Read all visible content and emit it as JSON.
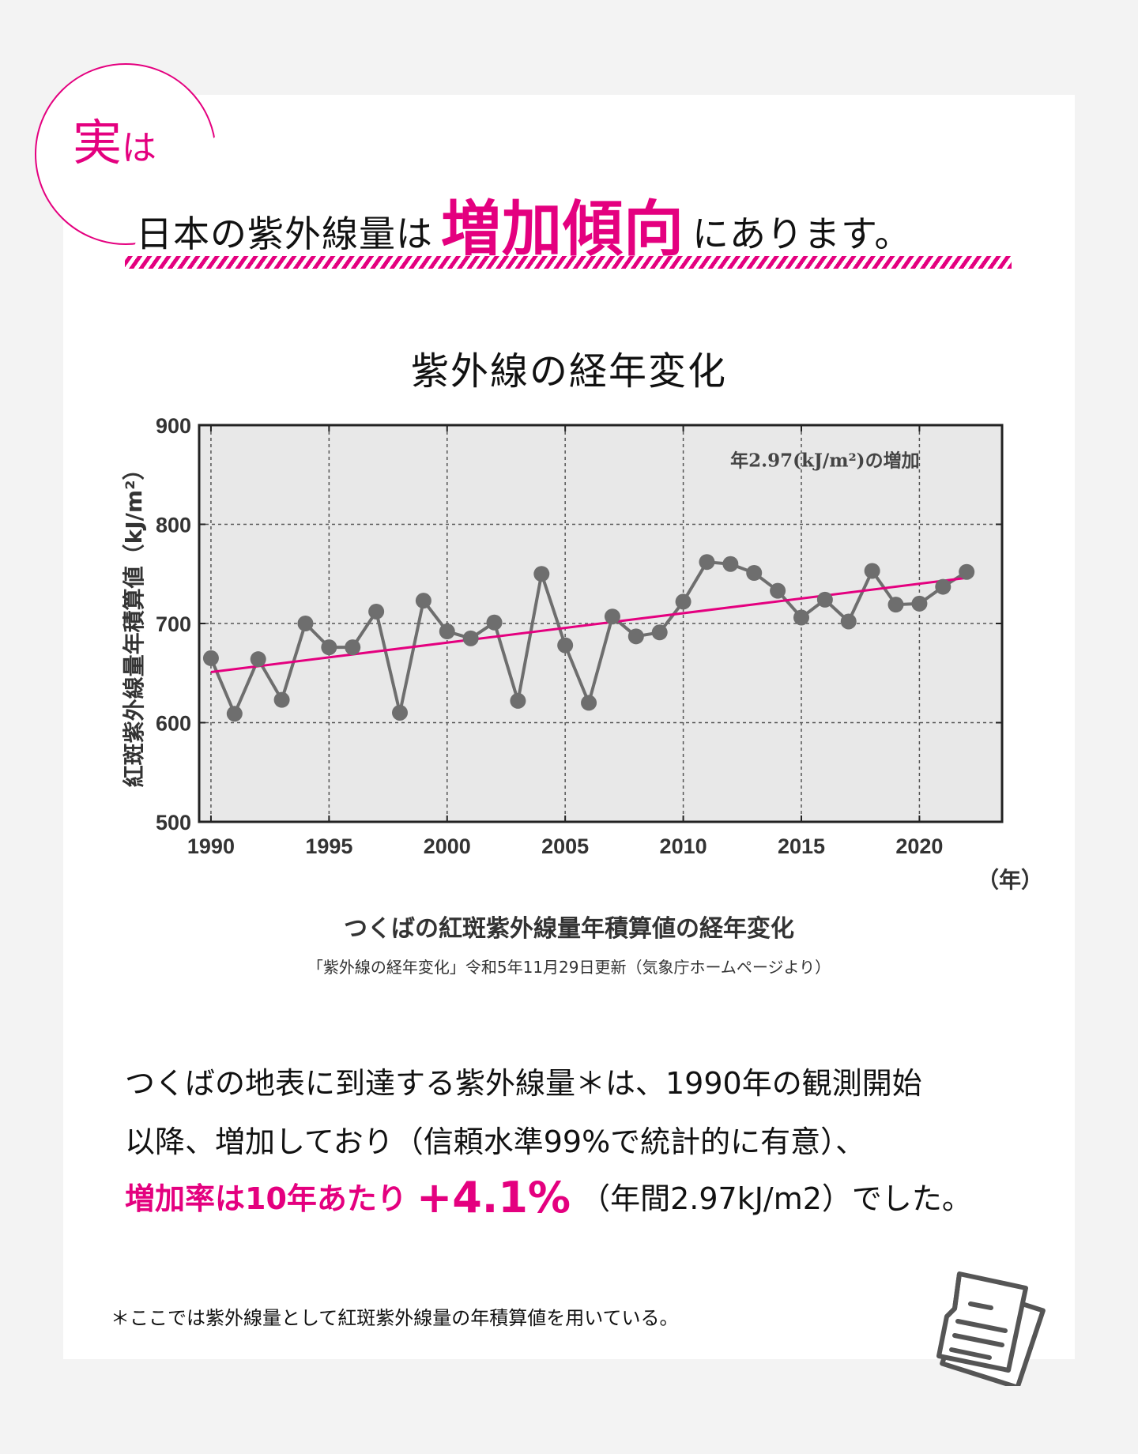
{
  "badge": {
    "big": "実",
    "small": "は"
  },
  "headline": {
    "pre": "日本の紫外線量は",
    "accent": "増加傾向",
    "post": "にあります。"
  },
  "chart_heading": "紫外線の経年変化",
  "chart_data": {
    "type": "line",
    "title": "つくばの紅斑紫外線量年積算値の経年変化",
    "ylabel": "紅斑紫外線量年積算値（kJ/m²）",
    "xlabel": "（年）",
    "xlim": [
      1989.5,
      2023.5
    ],
    "ylim": [
      500,
      900
    ],
    "x_ticks": [
      1990,
      1995,
      2000,
      2005,
      2010,
      2015,
      2020
    ],
    "y_ticks": [
      500,
      600,
      700,
      800,
      900
    ],
    "grid": true,
    "annotation": "年2.97(kJ/m²)の増加",
    "series": [
      {
        "type": "line-markers",
        "color": "#6e6e6e",
        "x": [
          1990,
          1991,
          1992,
          1993,
          1994,
          1995,
          1996,
          1997,
          1998,
          1999,
          2000,
          2001,
          2002,
          2003,
          2004,
          2005,
          2006,
          2007,
          2008,
          2009,
          2010,
          2011,
          2012,
          2013,
          2014,
          2015,
          2016,
          2017,
          2018,
          2019,
          2020,
          2021,
          2022
        ],
        "values": [
          665,
          609,
          664,
          623,
          700,
          676,
          676,
          712,
          610,
          723,
          692,
          685,
          701,
          622,
          750,
          678,
          620,
          707,
          687,
          691,
          722,
          762,
          760,
          751,
          733,
          706,
          724,
          702,
          753,
          719,
          720,
          737,
          752
        ]
      },
      {
        "type": "trend",
        "color": "#e4007f",
        "x": [
          1990,
          2022
        ],
        "values": [
          651,
          746
        ]
      }
    ]
  },
  "x_unit": "（年）",
  "source_note": "「紫外線の経年変化」令和5年11月29日更新（気象庁ホームページより）",
  "body": {
    "line1": "つくばの地表に到達する紫外線量＊は、1990年の観測開始",
    "line2": "以降、増加しており（信頼水準99%で統計的に有意）、",
    "line3_pink": "増加率は10年あたり",
    "line3_rate": "+4.1%",
    "line3_rest": "（年間2.97kJ/m2）でした。"
  },
  "footnote": "＊ここでは紫外線量として紅斑紫外線量の年積算値を用いている。",
  "colors": {
    "accent": "#e4007f",
    "marker": "#6e6e6e",
    "plot_bg": "#e8e8e8"
  },
  "icons": {
    "document": "document-icon"
  }
}
